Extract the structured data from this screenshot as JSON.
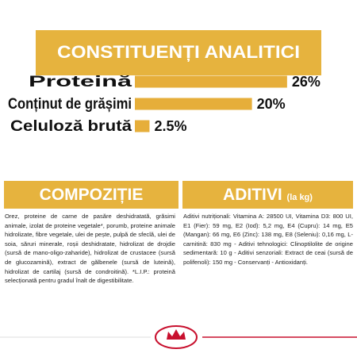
{
  "header": {
    "title": "CONSTITUENȚI ANALITICI"
  },
  "chart_data": {
    "type": "bar",
    "orientation": "horizontal",
    "color": "#e6ae3a",
    "categories": [
      "Proteină",
      "Conținut de grășimi",
      "Celuloză brută"
    ],
    "values": [
      26,
      20,
      2.5
    ],
    "value_labels": [
      "26%",
      "20%",
      "2.5%"
    ]
  },
  "composition": {
    "title": "COMPOZIȚIE",
    "text": "Orez, proteine de carne de pasăre deshidratată, grăsimi animale, izolat de proteine vegetale*, porumb, proteine animale hidrolizate, fibre vegetale, ulei de pește, pulpă de sfeclă, ulei de soia, săruri minerale, roșii deshidratate, hidrolizat de drojdie (sursă de mano-oligo-zaharide), hidrolizat de crustacee (sursă de glucozamină), extract de gălbenele (sursă de luteină), hidrolizat de cartilaj (sursă de condroitină). *L.I.P.: proteină selecționată pentru gradul înalt de digestibilitate."
  },
  "additives": {
    "title": "ADITIVI",
    "unit": "(la kg)",
    "text": "Aditivi nutriționali: Vitamina A: 28500 UI, Vitamina D3: 800 UI, E1 (Fier): 59 mg, E2 (Iod): 5,2 mg, E4 (Cupru): 14 mg, E5 (Mangan): 66 mg, E6 (Zinc): 138 mg, E8 (Seleniu): 0,16 mg, L-carnitină: 830 mg - Aditivi tehnologici: Clinoptilolite de origine sedimentară: 10 g - Aditivi senzoriali: Extract de ceai (sursă de polifenoli): 150 mg - Conservanți - Antioxidanți."
  }
}
